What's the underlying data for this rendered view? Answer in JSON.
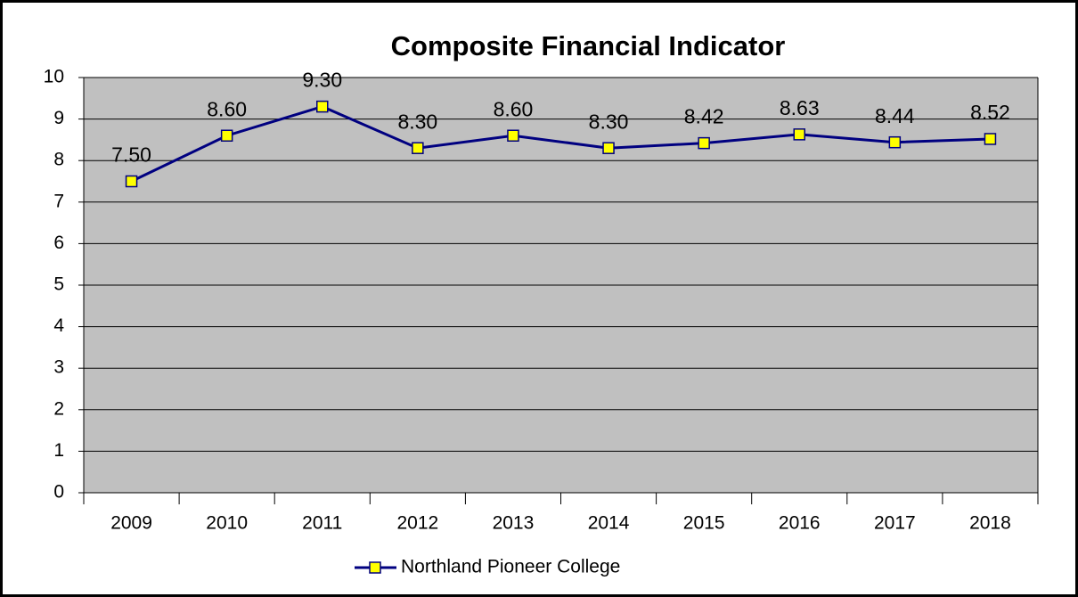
{
  "chart_data": {
    "type": "line",
    "title": "Composite Financial Indicator",
    "categories": [
      "2009",
      "2010",
      "2011",
      "2012",
      "2013",
      "2014",
      "2015",
      "2016",
      "2017",
      "2018"
    ],
    "series": [
      {
        "name": "Northland Pioneer College",
        "color": "#000080",
        "marker_color": "#ffff00",
        "values": [
          7.5,
          8.6,
          9.3,
          8.3,
          8.6,
          8.3,
          8.42,
          8.63,
          8.44,
          8.52
        ],
        "value_labels": [
          "7.50",
          "8.60",
          "9.30",
          "8.30",
          "8.60",
          "8.30",
          "8.42",
          "8.63",
          "8.44",
          "8.52"
        ]
      }
    ],
    "ylim": [
      0,
      10
    ],
    "yticks": [
      0,
      1,
      2,
      3,
      4,
      5,
      6,
      7,
      8,
      9,
      10
    ],
    "grid": true,
    "legend": "bottom"
  }
}
